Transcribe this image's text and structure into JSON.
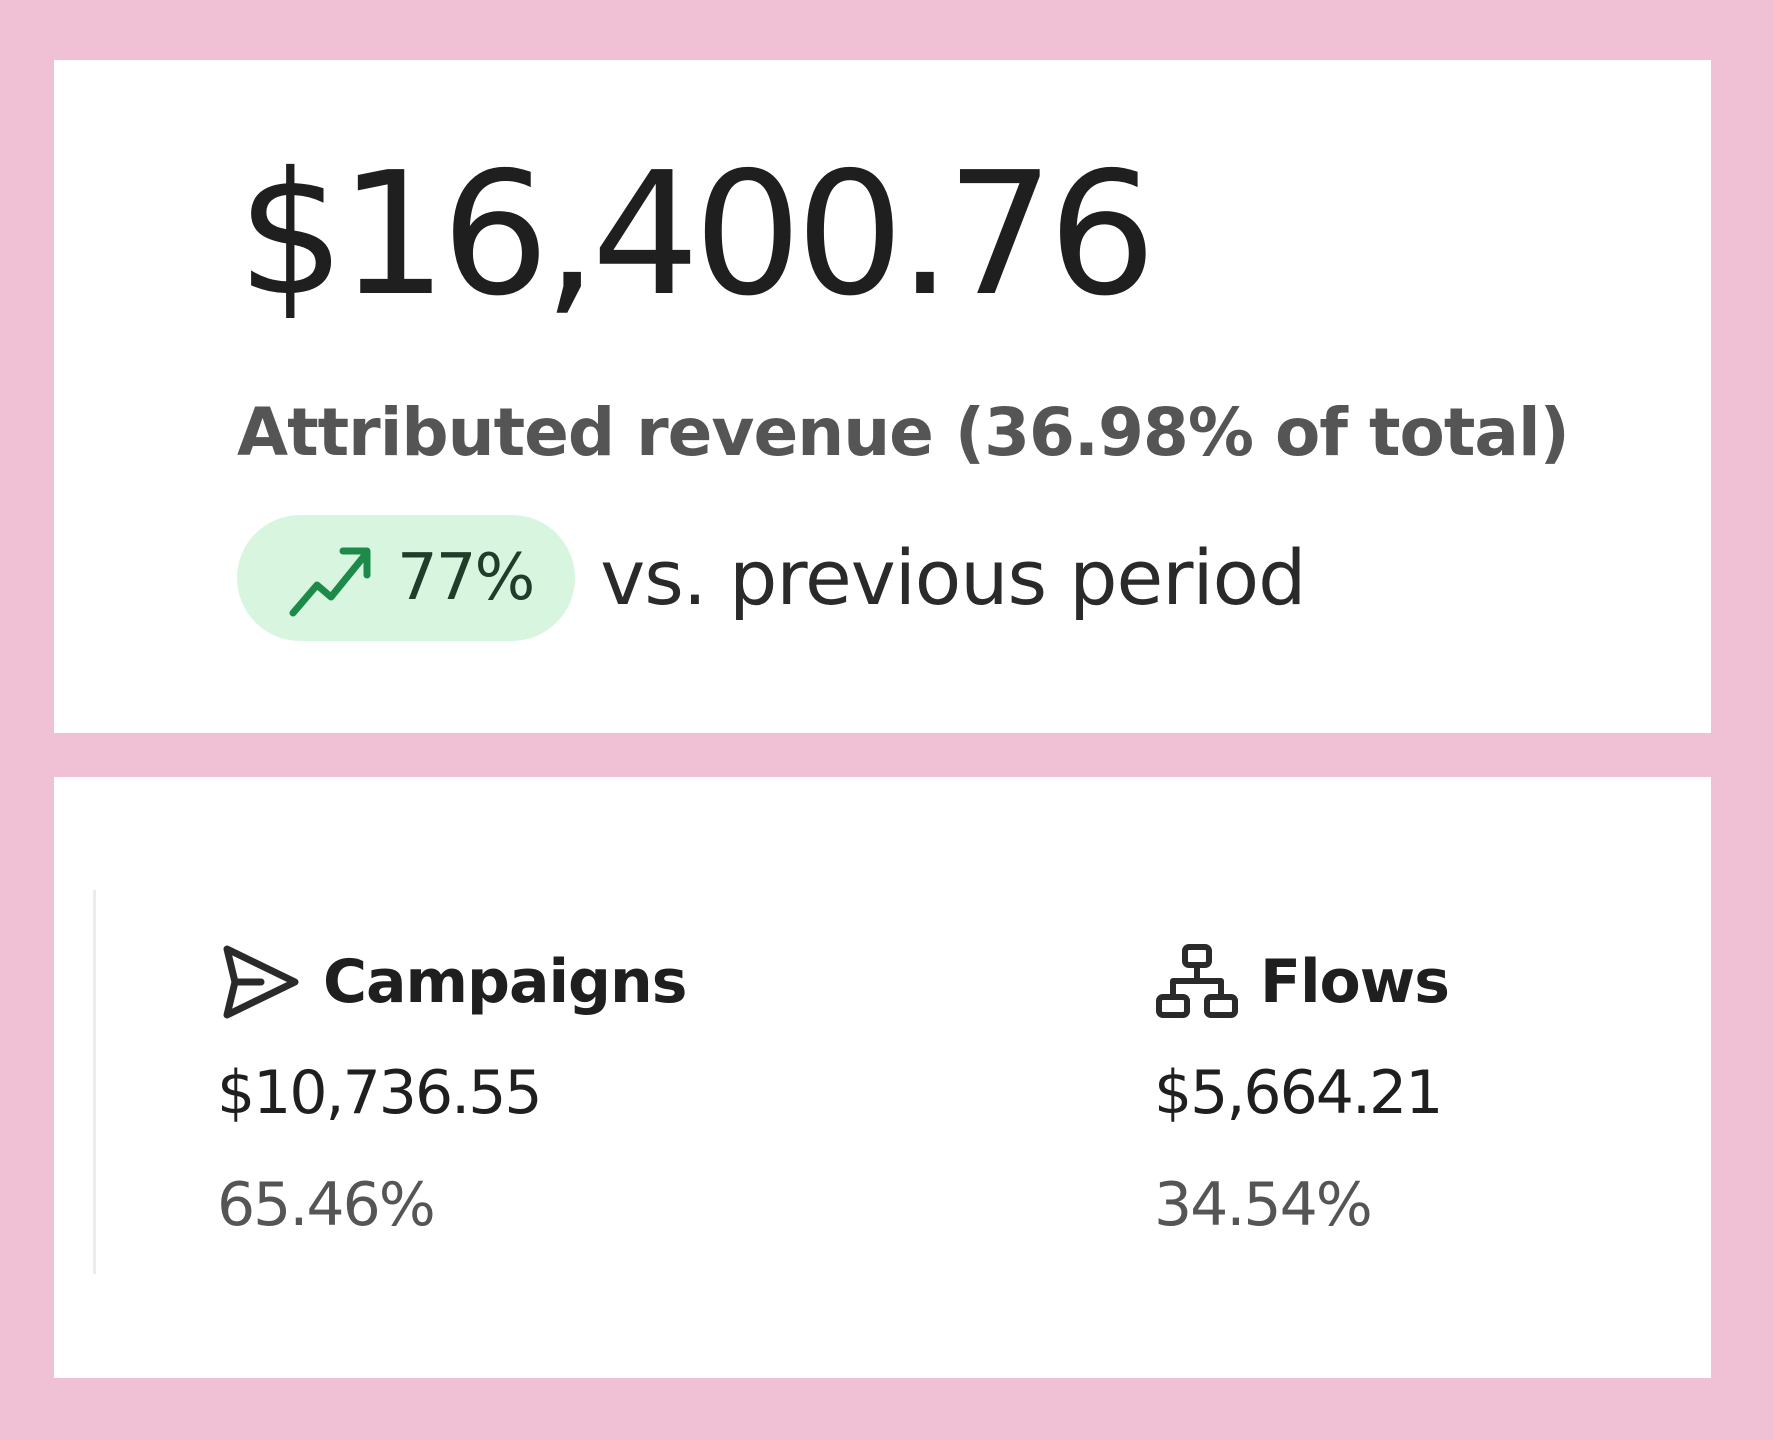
{
  "summary": {
    "total_value": "$16,400.76",
    "label": "Attributed revenue (36.98% of total)",
    "trend": {
      "direction": "up",
      "icon": "trend-up-icon",
      "percent": "77%",
      "suffix": "vs. previous period",
      "badge_color": "#d8f6df",
      "icon_color": "#1e8a4a"
    }
  },
  "breakdown": {
    "campaigns": {
      "icon": "send-icon",
      "label": "Campaigns",
      "amount": "$10,736.55",
      "share": "65.46%"
    },
    "flows": {
      "icon": "flow-hierarchy-icon",
      "label": "Flows",
      "amount": "$5,664.21",
      "share": "34.54%"
    }
  },
  "colors": {
    "page_background": "#f0c0d4",
    "card_background": "#ffffff",
    "primary_text": "#1f1f1f",
    "secondary_text": "#555555"
  }
}
